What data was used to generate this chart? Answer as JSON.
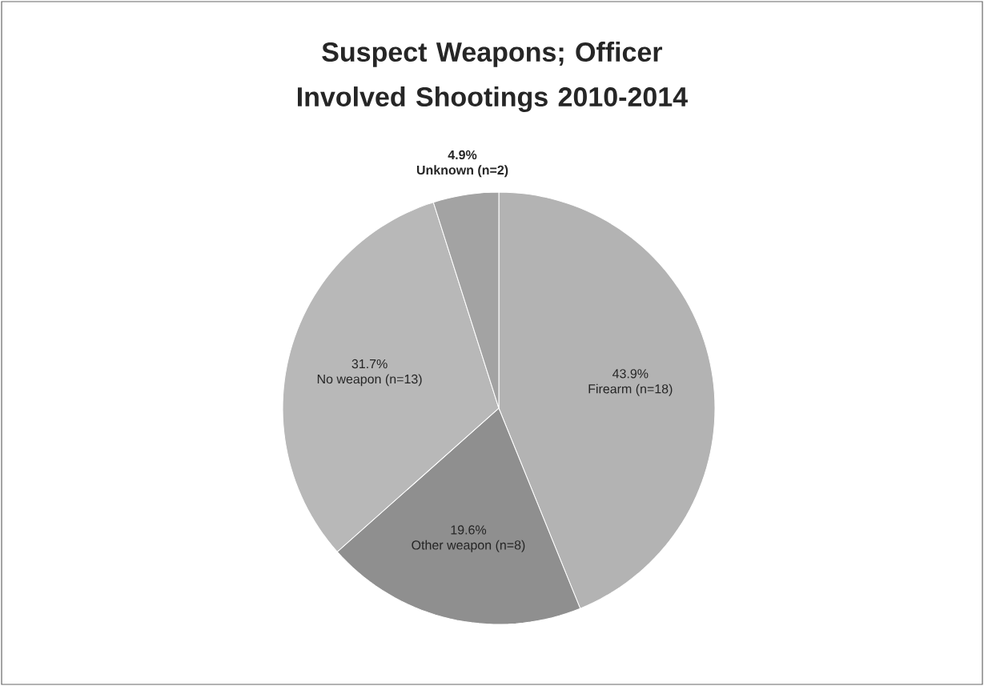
{
  "chart_data": {
    "type": "pie",
    "title": "Suspect Weapons; Officer Involved Shootings 2010-2014",
    "categories": [
      "Firearm (n=18)",
      "Other weapon (n=8)",
      "No weapon (n=13)",
      "Unknown (n=2)"
    ],
    "values": [
      43.9,
      19.6,
      31.7,
      4.9
    ],
    "value_labels": [
      "43.9%",
      "19.6%",
      "31.7%",
      "4.9%"
    ],
    "colors": [
      "#b3b3b3",
      "#8f8f8f",
      "#b8b8b8",
      "#a3a3a3"
    ]
  }
}
